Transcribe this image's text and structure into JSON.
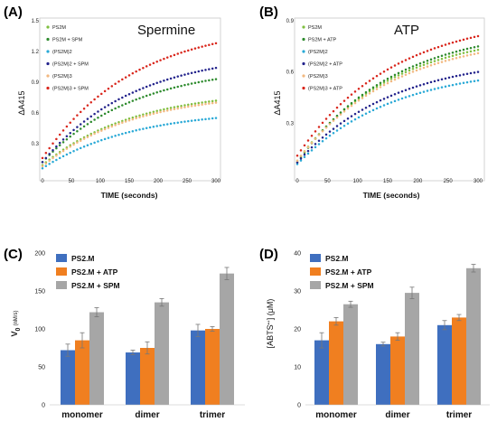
{
  "chart_data": [
    {
      "panel": "(A)",
      "type": "scatter",
      "title": "Spermine",
      "xlabel": "TIME (seconds)",
      "ylabel": "ΔA415",
      "xlim": [
        0,
        300
      ],
      "ylim": [
        0,
        1.5
      ],
      "xticks": [
        "0",
        "50",
        "100",
        "150",
        "200",
        "250",
        "300"
      ],
      "yticks": [
        "0",
        "0.3",
        "0.6",
        "0.9",
        "1.2",
        "1.5"
      ],
      "legend_position": "top-left",
      "series": [
        {
          "name": "PS2M",
          "color": "#7fbf3f",
          "y0": 0.09,
          "y300": 0.72
        },
        {
          "name": "PS2M + SPM",
          "color": "#2e8b2e",
          "y0": 0.12,
          "y300": 0.93
        },
        {
          "name": "(PS2M)2",
          "color": "#29a9d6",
          "y0": 0.06,
          "y300": 0.55
        },
        {
          "name": "(PS2M)2 + SPM",
          "color": "#23238c",
          "y0": 0.12,
          "y300": 1.04
        },
        {
          "name": "(PS2M)3",
          "color": "#f2b880",
          "y0": 0.08,
          "y300": 0.7
        },
        {
          "name": "(PS2M)3 + SPM",
          "color": "#d9261c",
          "y0": 0.16,
          "y300": 1.28
        }
      ]
    },
    {
      "panel": "(B)",
      "type": "scatter",
      "title": "ATP",
      "xlabel": "TIME (seconds)",
      "ylabel": "ΔA415",
      "xlim": [
        0,
        300
      ],
      "ylim": [
        0,
        0.9
      ],
      "xticks": [
        "0",
        "50",
        "100",
        "150",
        "200",
        "250",
        "300"
      ],
      "yticks": [
        "0",
        "0.3",
        "0.6",
        "0.9"
      ],
      "legend_position": "top-left",
      "series": [
        {
          "name": "PS2M",
          "color": "#7fbf3f",
          "y0": 0.08,
          "y300": 0.73
        },
        {
          "name": "PS2M + ATP",
          "color": "#2e8b2e",
          "y0": 0.07,
          "y300": 0.75
        },
        {
          "name": "(PS2M)2",
          "color": "#29a9d6",
          "y0": 0.06,
          "y300": 0.55
        },
        {
          "name": "(PS2M)2 + ATP",
          "color": "#23238c",
          "y0": 0.07,
          "y300": 0.6
        },
        {
          "name": "(PS2M)3",
          "color": "#f2b880",
          "y0": 0.08,
          "y300": 0.71
        },
        {
          "name": "(PS2M)3 + ATP",
          "color": "#d9261c",
          "y0": 0.11,
          "y300": 0.81
        }
      ]
    },
    {
      "panel": "(C)",
      "type": "bar",
      "ylabel_main": "V",
      "ylabel_sub": "0",
      "ylabel_unit": "(nM/s)",
      "ylim": [
        0,
        200
      ],
      "yticks": [
        "0",
        "50",
        "100",
        "150",
        "200"
      ],
      "categories": [
        "monomer",
        "dimer",
        "trimer"
      ],
      "legend_position": "top-left",
      "series": [
        {
          "name": "PS2.M",
          "color": "#3f6fbf",
          "values": [
            72,
            69,
            98
          ],
          "errors": [
            8,
            3,
            8
          ]
        },
        {
          "name": "PS2.M + ATP",
          "color": "#f07f20",
          "values": [
            85,
            75,
            100
          ],
          "errors": [
            10,
            8,
            3
          ]
        },
        {
          "name": "PS2.M + SPM",
          "color": "#a6a6a6",
          "values": [
            122,
            135,
            173
          ],
          "errors": [
            6,
            5,
            8
          ]
        }
      ]
    },
    {
      "panel": "(D)",
      "type": "bar",
      "ylabel_main": "[ABTS",
      "ylabel_sup": "•+",
      "ylabel_unit": "] (μM)",
      "ylim": [
        0,
        40
      ],
      "yticks": [
        "0",
        "10",
        "20",
        "30",
        "40"
      ],
      "categories": [
        "monomer",
        "dimer",
        "trimer"
      ],
      "legend_position": "top-left",
      "series": [
        {
          "name": "PS2.M",
          "color": "#3f6fbf",
          "values": [
            17,
            16,
            21
          ],
          "errors": [
            2,
            0.5,
            1.2
          ]
        },
        {
          "name": "PS2.M + ATP",
          "color": "#f07f20",
          "values": [
            22,
            18,
            23
          ],
          "errors": [
            1,
            1,
            0.8
          ]
        },
        {
          "name": "PS2.M + SPM",
          "color": "#a6a6a6",
          "values": [
            26.5,
            29.5,
            36
          ],
          "errors": [
            0.8,
            1.5,
            1
          ]
        }
      ]
    }
  ]
}
